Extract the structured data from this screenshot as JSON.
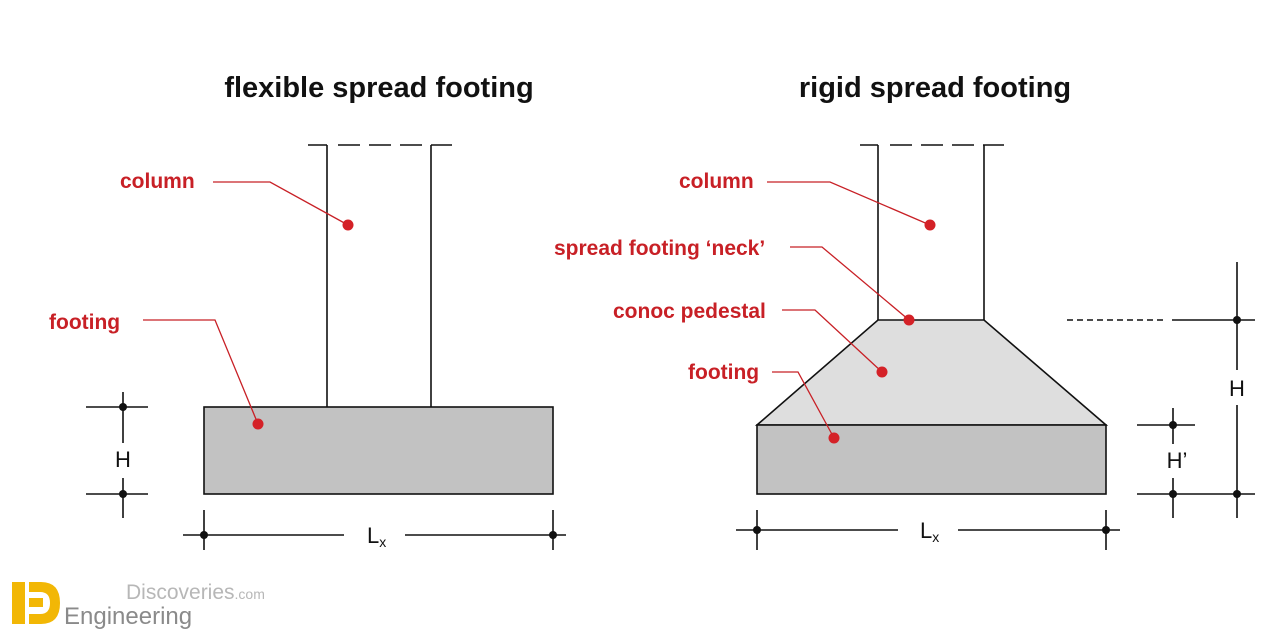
{
  "left": {
    "title": "flexible spread footing",
    "labels": {
      "column": "column",
      "footing": "footing"
    },
    "dims": {
      "height": "H",
      "length": "L",
      "length_sub": "x"
    }
  },
  "right": {
    "title": "rigid spread footing",
    "labels": {
      "column": "column",
      "neck": "spread footing ‘neck’",
      "pedestal": "conoc pedestal",
      "footing": "footing"
    },
    "dims": {
      "total_height": "H",
      "footing_height": "H’",
      "length": "L",
      "length_sub": "x"
    }
  },
  "watermark": {
    "line1": "Discoveries",
    "line1_suffix": ".com",
    "line2": "Engineering"
  },
  "colors": {
    "label_red": "#c82026",
    "dot_red": "#d42127",
    "footing_fill": "#c2c2c2",
    "pedestal_fill": "#dedede",
    "logo_yellow": "#f2b705"
  }
}
